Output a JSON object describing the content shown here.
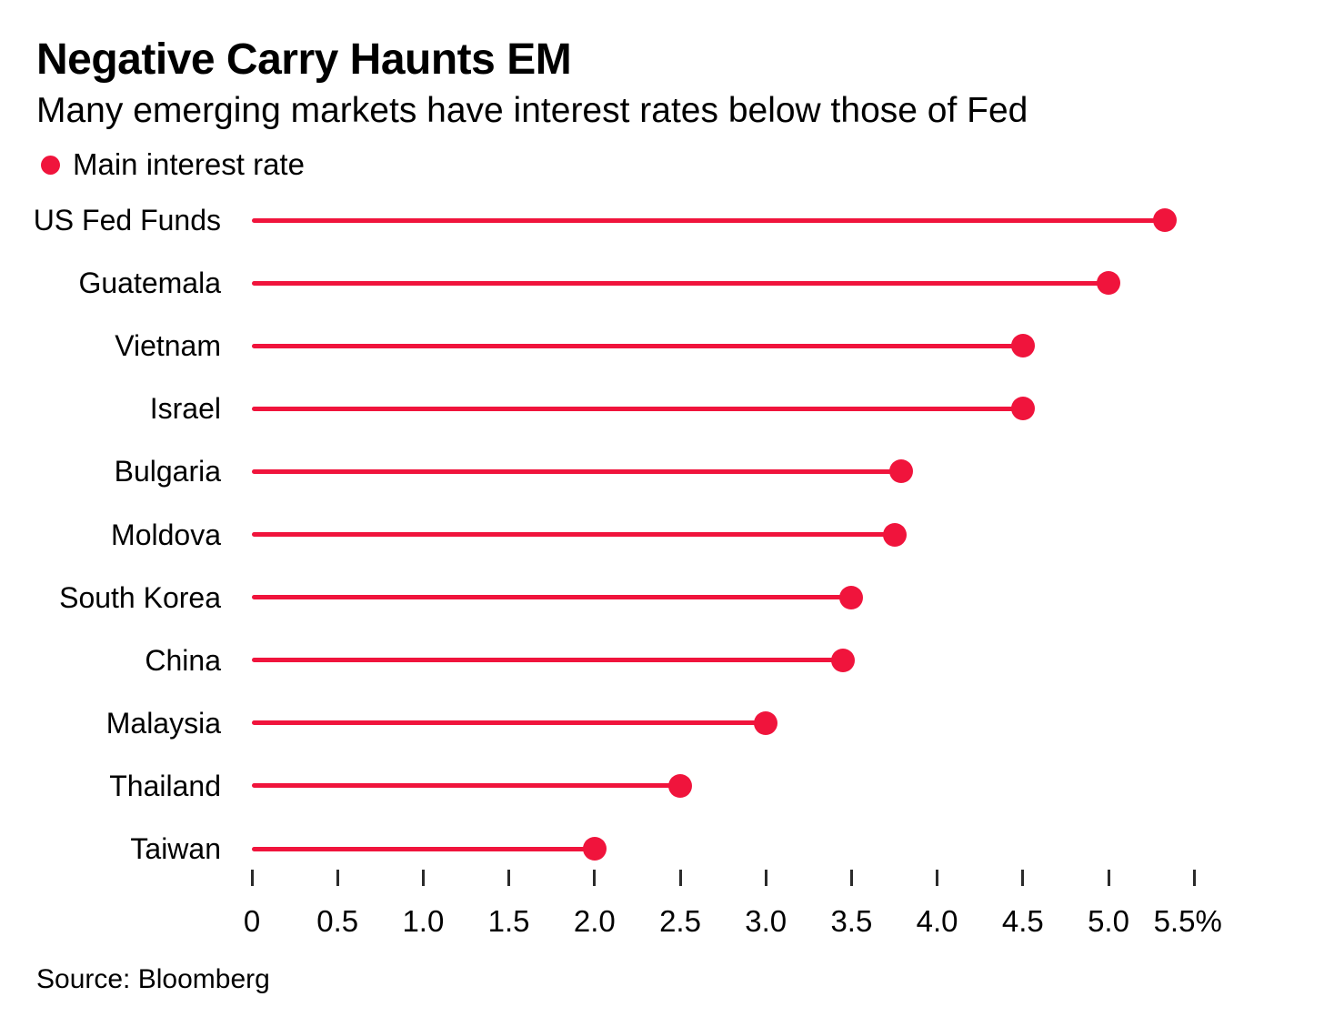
{
  "header": {
    "title": "Negative Carry Haunts EM",
    "subtitle": "Many emerging markets have interest rates below those of Fed"
  },
  "legend": {
    "label": "Main interest rate"
  },
  "source": "Source: Bloomberg",
  "colors": {
    "accent": "#F0143C",
    "text": "#000000",
    "tick": "#2B2B2B"
  },
  "chart_data": {
    "type": "bar",
    "variant": "lollipop",
    "orientation": "horizontal",
    "title": "Negative Carry Haunts EM",
    "subtitle": "Many emerging markets have interest rates below those of Fed",
    "categories": [
      "US Fed Funds",
      "Guatemala",
      "Vietnam",
      "Israel",
      "Bulgaria",
      "Moldova",
      "South Korea",
      "China",
      "Malaysia",
      "Thailand",
      "Taiwan"
    ],
    "values": [
      5.33,
      5.0,
      4.5,
      4.5,
      3.79,
      3.75,
      3.5,
      3.45,
      3.0,
      2.5,
      2.0
    ],
    "unit": "%",
    "xlabel": "",
    "ylabel": "",
    "xlim": [
      0,
      5.5
    ],
    "x_tick_values": [
      0,
      0.5,
      1.0,
      1.5,
      2.0,
      2.5,
      3.0,
      3.5,
      4.0,
      4.5,
      5.0,
      5.5
    ],
    "x_tick_labels": [
      "0",
      "0.5",
      "1.0",
      "1.5",
      "2.0",
      "2.5",
      "3.0",
      "3.5",
      "4.0",
      "4.5",
      "5.0",
      "5.5%"
    ],
    "legend": [
      "Main interest rate"
    ],
    "legend_position": "top-left",
    "grid": false,
    "source": "Source: Bloomberg"
  }
}
